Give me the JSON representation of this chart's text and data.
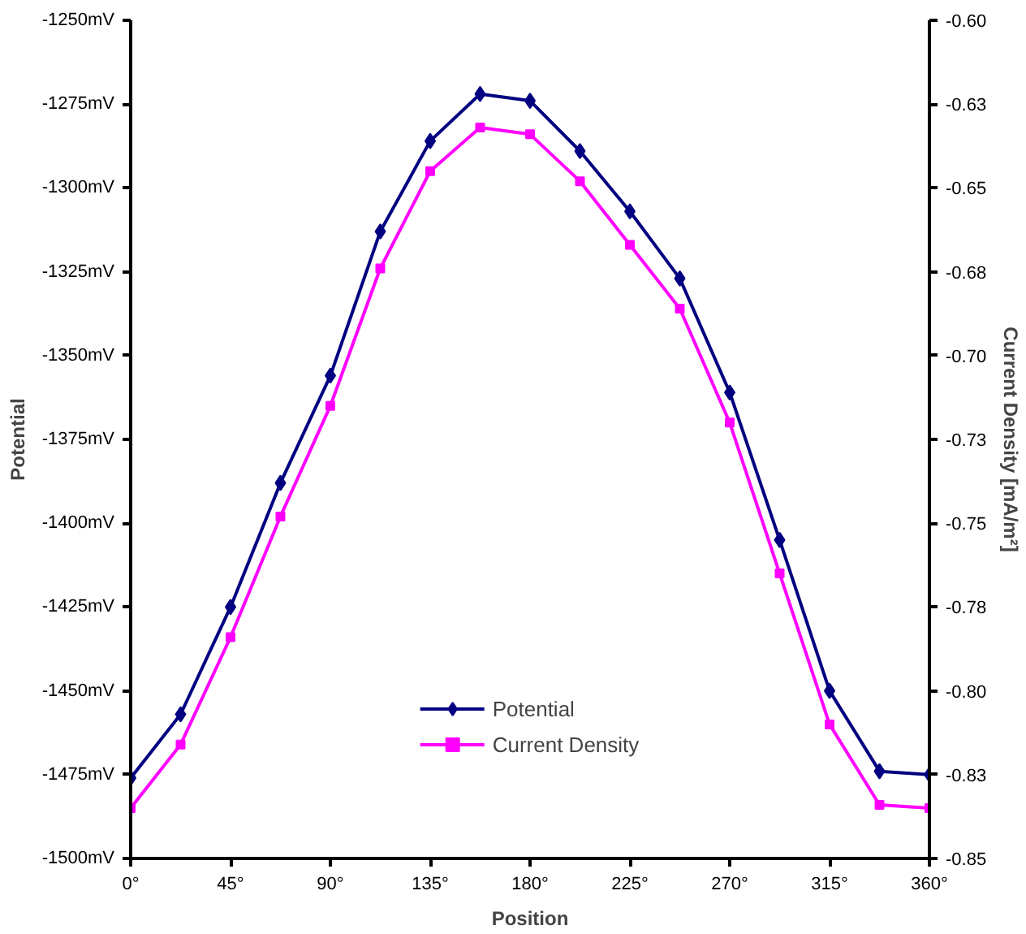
{
  "chart_data": {
    "type": "line",
    "xlabel": "Position",
    "ylabel": "Potential",
    "y2label": "Current Density [mA/m²]",
    "x": [
      0,
      22.5,
      45,
      67.5,
      90,
      112.5,
      135,
      157.5,
      180,
      202.5,
      225,
      247.5,
      270,
      292.5,
      315,
      337.5,
      360
    ],
    "xlim": [
      0,
      360
    ],
    "xticks": [
      {
        "value": 0,
        "label": "0°"
      },
      {
        "value": 45,
        "label": "45°"
      },
      {
        "value": 90,
        "label": "90°"
      },
      {
        "value": 135,
        "label": "135°"
      },
      {
        "value": 180,
        "label": "180°"
      },
      {
        "value": 225,
        "label": "225°"
      },
      {
        "value": 270,
        "label": "270°"
      },
      {
        "value": 315,
        "label": "315°"
      },
      {
        "value": 360,
        "label": "360°"
      }
    ],
    "ylim": [
      -1500,
      -1250
    ],
    "yticks": [
      {
        "value": -1500,
        "label": "-1500mV"
      },
      {
        "value": -1475,
        "label": "-1475mV"
      },
      {
        "value": -1450,
        "label": "-1450mV"
      },
      {
        "value": -1425,
        "label": "-1425mV"
      },
      {
        "value": -1400,
        "label": "-1400mV"
      },
      {
        "value": -1375,
        "label": "-1375mV"
      },
      {
        "value": -1350,
        "label": "-1350mV"
      },
      {
        "value": -1325,
        "label": "-1325mV"
      },
      {
        "value": -1300,
        "label": "-1300mV"
      },
      {
        "value": -1275,
        "label": "-1275mV"
      },
      {
        "value": -1250,
        "label": "-1250mV"
      }
    ],
    "y2lim": [
      -0.85,
      -0.6
    ],
    "y2ticks": [
      -0.85,
      {
        "value": -0.825,
        "label": "-0.83"
      },
      {
        "value": -0.8,
        "label": "-0.80"
      },
      {
        "value": -0.775,
        "label": "-0.78"
      },
      -0.75,
      {
        "value": -0.725,
        "label": "-0.73"
      },
      {
        "value": -0.7,
        "label": "-0.70"
      },
      {
        "value": -0.675,
        "label": "-0.68"
      },
      -0.65,
      {
        "value": -0.625,
        "label": "-0.63"
      },
      {
        "value": -0.6,
        "label": "-0.60"
      }
    ],
    "series": [
      {
        "name": "Potential",
        "color": "#000080",
        "marker": "diamond",
        "values": [
          -1476,
          -1457,
          -1425,
          -1388,
          -1356,
          -1313,
          -1286,
          -1272,
          -1274,
          -1289,
          -1307,
          -1327,
          -1361,
          -1405,
          -1450,
          -1474,
          -1475
        ]
      },
      {
        "name": "Current Density",
        "color": "#ff00ff",
        "marker": "square",
        "axis": "y2",
        "values": [
          -0.835,
          -0.816,
          -0.784,
          -0.748,
          -0.715,
          -0.674,
          -0.645,
          -0.632,
          -0.634,
          -0.648,
          -0.667,
          -0.686,
          -0.72,
          -0.765,
          -0.81,
          -0.834,
          -0.835
        ]
      }
    ],
    "grid": false,
    "legend": "bottom"
  }
}
